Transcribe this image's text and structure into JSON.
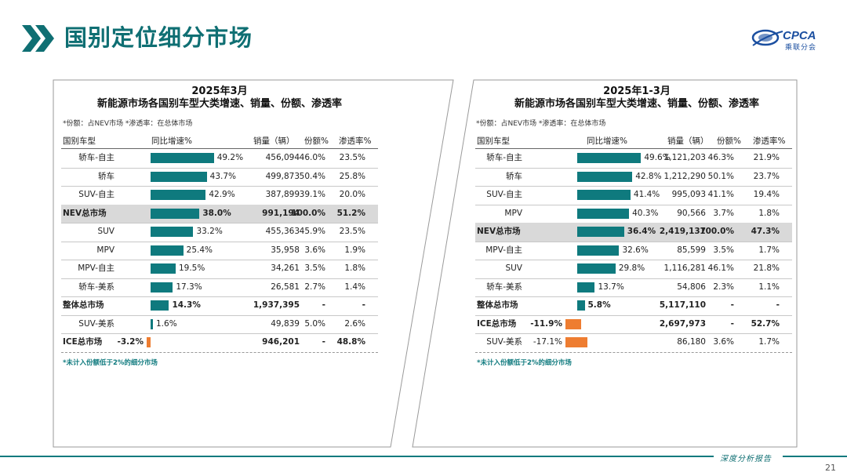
{
  "header": {
    "title": "国别定位细分市场",
    "logo_text": "CPCA",
    "logo_sub": "乘联分会"
  },
  "colors": {
    "teal": "#0f7a7e",
    "orange": "#ee7d31",
    "highlight": "#d9d9d9"
  },
  "left_panel": {
    "title_line1": "2025年3月",
    "title_line2": "新能源市场各国别车型大类增速、销量、份额、渗透率",
    "note": "*份额：占NEV市场   *渗透率：在总体市场",
    "columns": [
      "国别车型",
      "同比增速%",
      "销量（辆）",
      "份额%",
      "渗透率%"
    ],
    "rows": [
      {
        "name": "轿车-自主",
        "growth": 49.2,
        "growth_label": "49.2%",
        "sales": "456,094",
        "share": "46.0%",
        "pen": "23.5%",
        "style": ""
      },
      {
        "name": "轿车",
        "growth": 43.7,
        "growth_label": "43.7%",
        "sales": "499,873",
        "share": "50.4%",
        "pen": "25.8%",
        "style": ""
      },
      {
        "name": "SUV-自主",
        "growth": 42.9,
        "growth_label": "42.9%",
        "sales": "387,899",
        "share": "39.1%",
        "pen": "20.0%",
        "style": ""
      },
      {
        "name": "NEV总市场",
        "growth": 38.0,
        "growth_label": "38.0%",
        "sales": "991,194",
        "share": "100.0%",
        "pen": "51.2%",
        "style": "hl"
      },
      {
        "name": "SUV",
        "growth": 33.2,
        "growth_label": "33.2%",
        "sales": "455,363",
        "share": "45.9%",
        "pen": "23.5%",
        "style": ""
      },
      {
        "name": "MPV",
        "growth": 25.4,
        "growth_label": "25.4%",
        "sales": "35,958",
        "share": "3.6%",
        "pen": "1.9%",
        "style": ""
      },
      {
        "name": "MPV-自主",
        "growth": 19.5,
        "growth_label": "19.5%",
        "sales": "34,261",
        "share": "3.5%",
        "pen": "1.8%",
        "style": ""
      },
      {
        "name": "轿车-美系",
        "growth": 17.3,
        "growth_label": "17.3%",
        "sales": "26,581",
        "share": "2.7%",
        "pen": "1.4%",
        "style": ""
      },
      {
        "name": "整体总市场",
        "growth": 14.3,
        "growth_label": "14.3%",
        "sales": "1,937,395",
        "share": "-",
        "pen": "-",
        "style": "bold"
      },
      {
        "name": "SUV-美系",
        "growth": 1.6,
        "growth_label": "1.6%",
        "sales": "49,839",
        "share": "5.0%",
        "pen": "2.6%",
        "style": ""
      },
      {
        "name": "ICE总市场",
        "growth": -3.2,
        "growth_label": "-3.2%",
        "sales": "946,201",
        "share": "-",
        "pen": "48.8%",
        "style": "bold"
      }
    ],
    "footnote": "*未计入份额低于2%的细分市场"
  },
  "right_panel": {
    "title_line1": "2025年1-3月",
    "title_line2": "新能源市场各国别车型大类增速、销量、份额、渗透率",
    "note": "*份额：占NEV市场   *渗透率：在总体市场",
    "columns": [
      "国别车型",
      "同比增速%",
      "销量（辆）",
      "份额%",
      "渗透率%"
    ],
    "rows": [
      {
        "name": "轿车-自主",
        "growth": 49.6,
        "growth_label": "49.6%",
        "sales": "1,121,203",
        "share": "46.3%",
        "pen": "21.9%",
        "style": ""
      },
      {
        "name": "轿车",
        "growth": 42.8,
        "growth_label": "42.8%",
        "sales": "1,212,290",
        "share": "50.1%",
        "pen": "23.7%",
        "style": ""
      },
      {
        "name": "SUV-自主",
        "growth": 41.4,
        "growth_label": "41.4%",
        "sales": "995,093",
        "share": "41.1%",
        "pen": "19.4%",
        "style": ""
      },
      {
        "name": "MPV",
        "growth": 40.3,
        "growth_label": "40.3%",
        "sales": "90,566",
        "share": "3.7%",
        "pen": "1.8%",
        "style": ""
      },
      {
        "name": "NEV总市场",
        "growth": 36.4,
        "growth_label": "36.4%",
        "sales": "2,419,137",
        "share": "100.0%",
        "pen": "47.3%",
        "style": "hl"
      },
      {
        "name": "MPV-自主",
        "growth": 32.6,
        "growth_label": "32.6%",
        "sales": "85,599",
        "share": "3.5%",
        "pen": "1.7%",
        "style": ""
      },
      {
        "name": "SUV",
        "growth": 29.8,
        "growth_label": "29.8%",
        "sales": "1,116,281",
        "share": "46.1%",
        "pen": "21.8%",
        "style": ""
      },
      {
        "name": "轿车-美系",
        "growth": 13.7,
        "growth_label": "13.7%",
        "sales": "54,806",
        "share": "2.3%",
        "pen": "1.1%",
        "style": ""
      },
      {
        "name": "整体总市场",
        "growth": 5.8,
        "growth_label": "5.8%",
        "sales": "5,117,110",
        "share": "-",
        "pen": "-",
        "style": "bold"
      },
      {
        "name": "ICE总市场",
        "growth": -11.9,
        "growth_label": "-11.9%",
        "sales": "2,697,973",
        "share": "-",
        "pen": "52.7%",
        "style": "bold"
      },
      {
        "name": "SUV-美系",
        "growth": -17.1,
        "growth_label": "-17.1%",
        "sales": "86,180",
        "share": "3.6%",
        "pen": "1.7%",
        "style": ""
      }
    ],
    "footnote": "*未计入份额低于2%的细分市场"
  },
  "footer": {
    "label": "深度分析报告",
    "page_number": "21"
  }
}
